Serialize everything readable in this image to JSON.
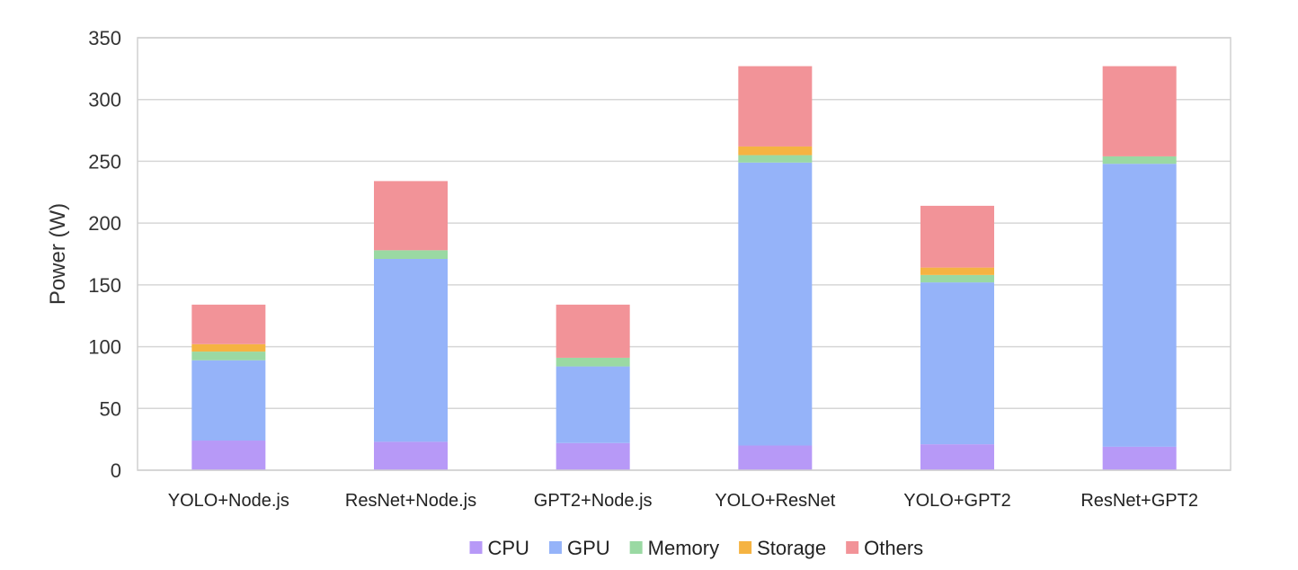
{
  "chart_data": {
    "type": "bar",
    "stacked": true,
    "title": "",
    "xlabel": "",
    "ylabel": "Power (W)",
    "ylim": [
      0,
      350
    ],
    "yticks": [
      0,
      50,
      100,
      150,
      200,
      250,
      300,
      350
    ],
    "grid": true,
    "legend_position": "bottom",
    "categories": [
      "YOLO+Node.js",
      "ResNet+Node.js",
      "GPT2+Node.js",
      "YOLO+ResNet",
      "YOLO+GPT2",
      "ResNet+GPT2"
    ],
    "series": [
      {
        "name": "CPU",
        "color": "#b799f7",
        "values": [
          24,
          23,
          22,
          20,
          21,
          19
        ]
      },
      {
        "name": "GPU",
        "color": "#95b3f9",
        "values": [
          65,
          148,
          62,
          229,
          131,
          229
        ]
      },
      {
        "name": "Memory",
        "color": "#9ad9a3",
        "values": [
          7,
          7,
          7,
          6,
          6,
          6
        ]
      },
      {
        "name": "Storage",
        "color": "#f5b342",
        "values": [
          6,
          0,
          0,
          7,
          6,
          0
        ]
      },
      {
        "name": "Others",
        "color": "#f29398",
        "values": [
          32,
          56,
          43,
          65,
          50,
          73
        ]
      }
    ]
  }
}
